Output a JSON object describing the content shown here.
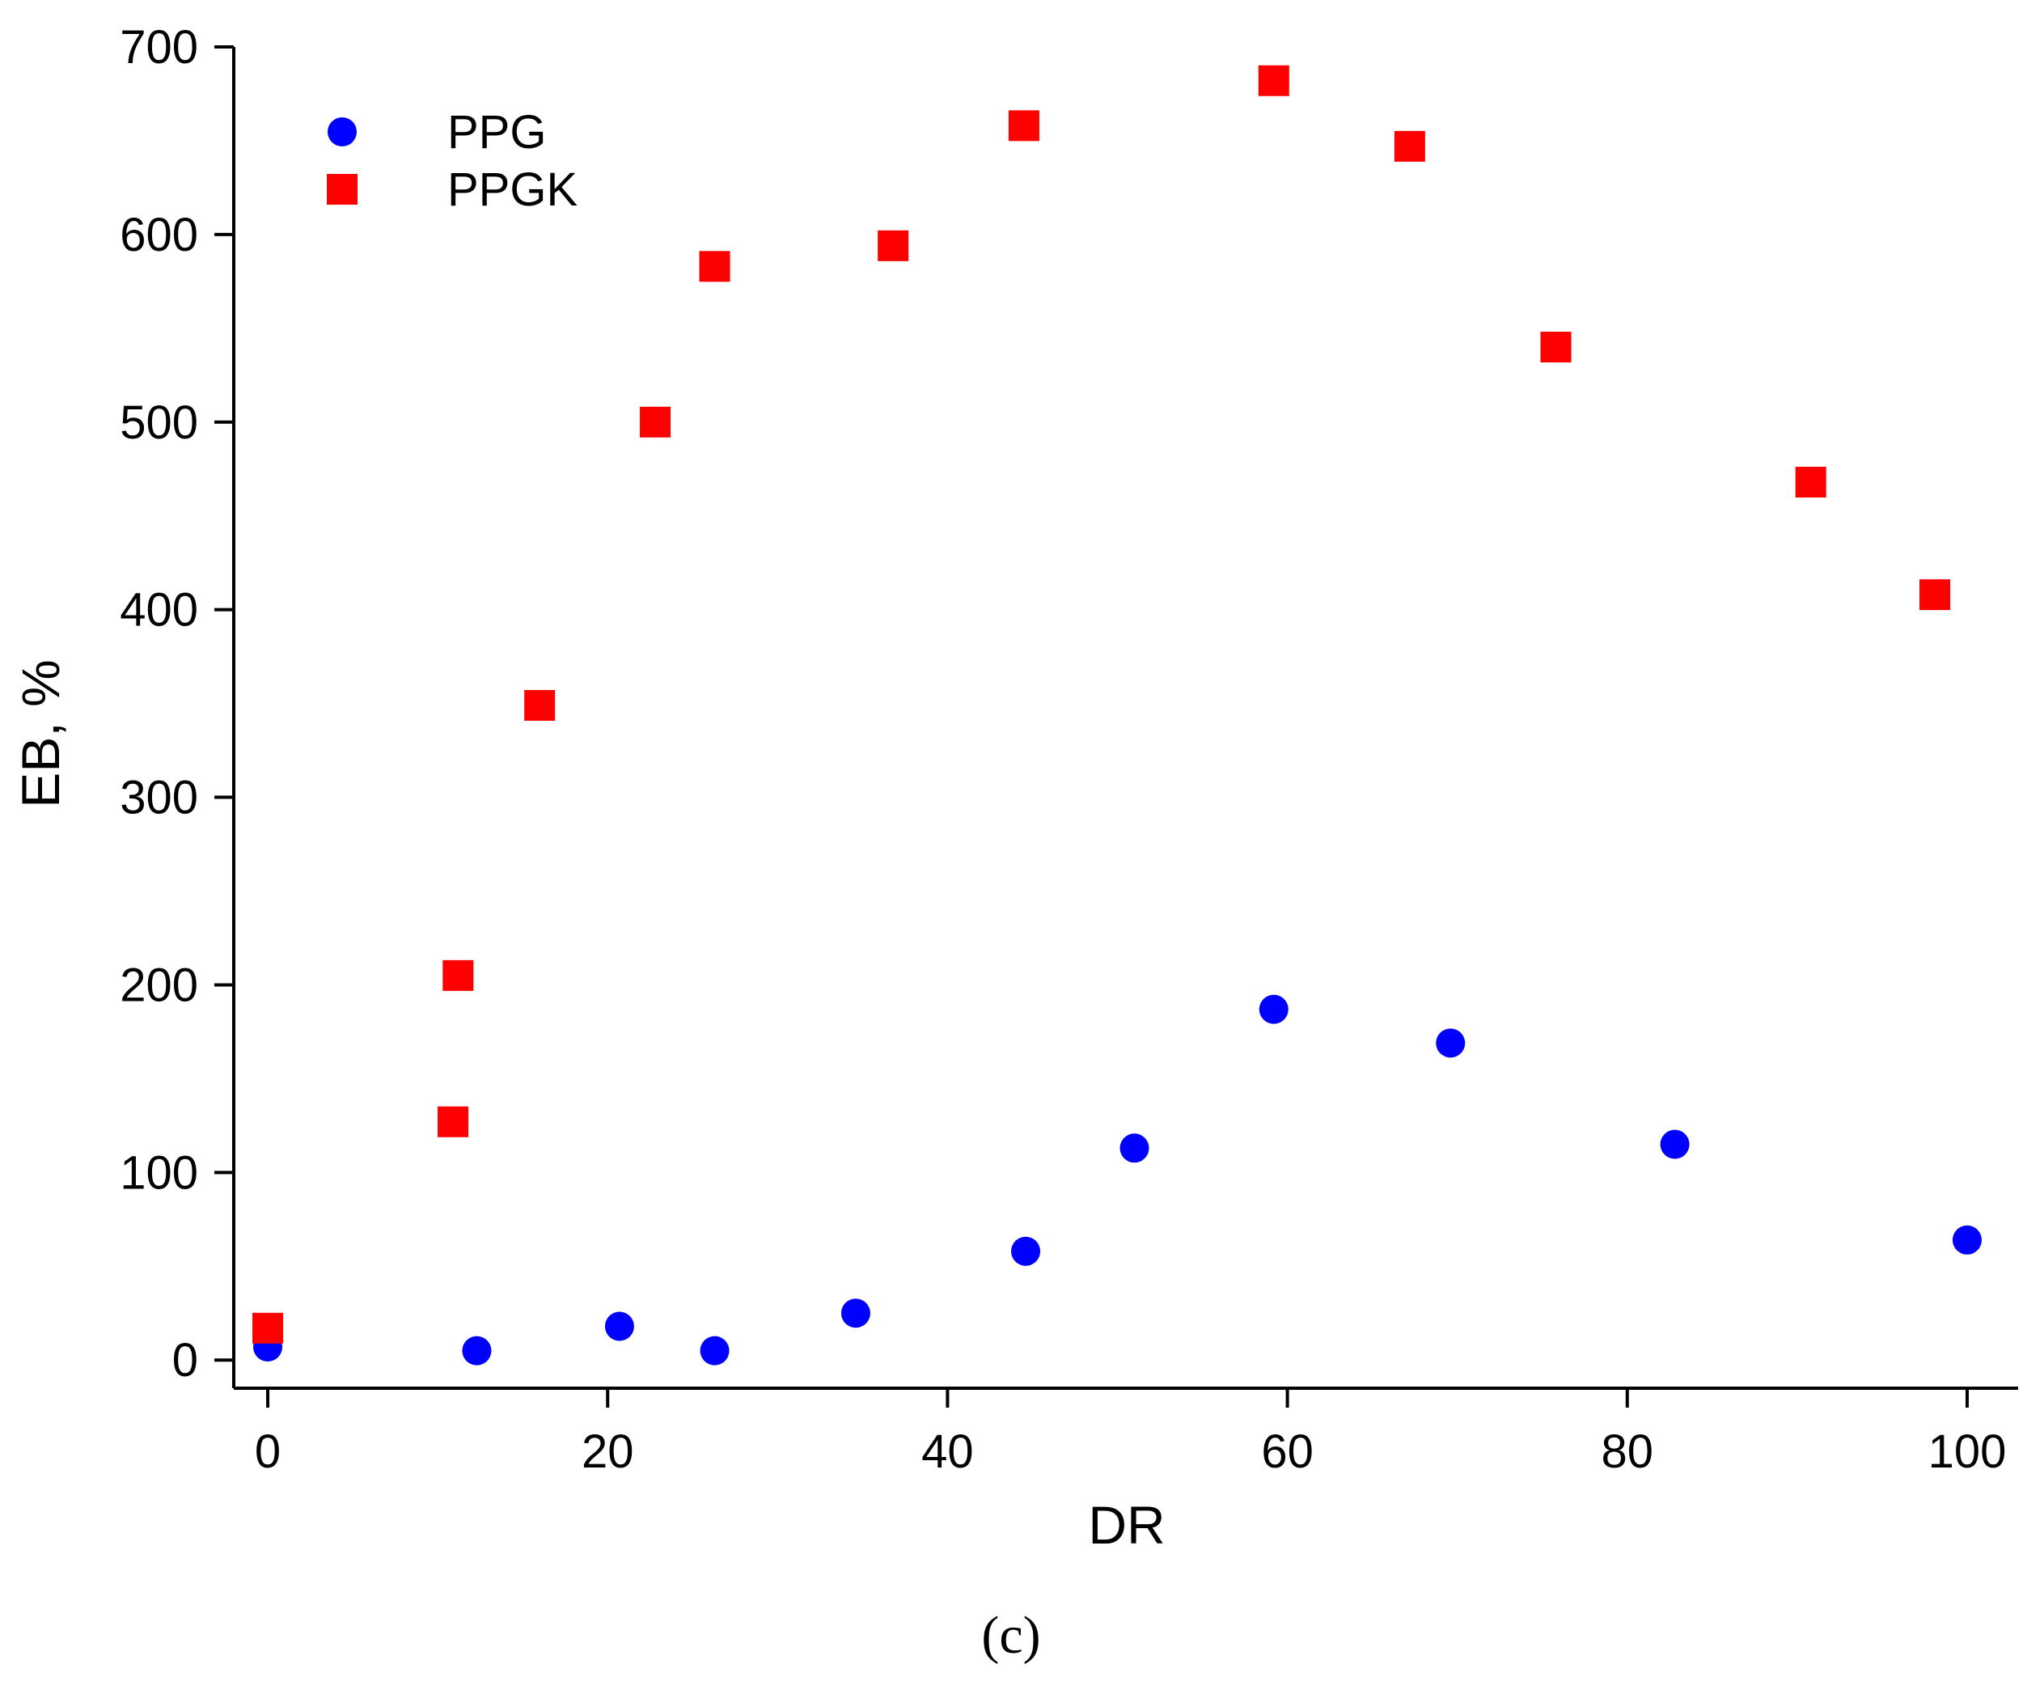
{
  "chart_data": {
    "type": "scatter",
    "title": "",
    "xlabel": "DR",
    "ylabel": "EB, %",
    "xlim": [
      -2,
      103
    ],
    "ylim": [
      -15,
      700
    ],
    "xticks": [
      0,
      20,
      40,
      60,
      80,
      100
    ],
    "yticks": [
      0,
      100,
      200,
      300,
      400,
      500,
      600,
      700
    ],
    "grid": false,
    "legend_position": "top-left",
    "series": [
      {
        "name": "PPG",
        "marker": "circle",
        "color": "#0000ff",
        "x": [
          0,
          12.3,
          20.7,
          26.3,
          34.6,
          44.6,
          51.0,
          59.2,
          69.6,
          82.8,
          100.0
        ],
        "y": [
          7,
          5,
          18,
          5,
          25,
          58,
          113,
          187,
          169,
          115,
          64
        ]
      },
      {
        "name": "PPGK",
        "marker": "square",
        "color": "#ff0000",
        "x": [
          0,
          10.9,
          11.2,
          16.0,
          22.8,
          26.3,
          36.8,
          44.5,
          59.2,
          67.2,
          75.8,
          90.8,
          98.1
        ],
        "y": [
          17,
          127,
          205,
          349,
          500,
          583,
          594,
          658,
          682,
          647,
          540,
          468,
          408
        ]
      }
    ],
    "caption": "(c)"
  }
}
